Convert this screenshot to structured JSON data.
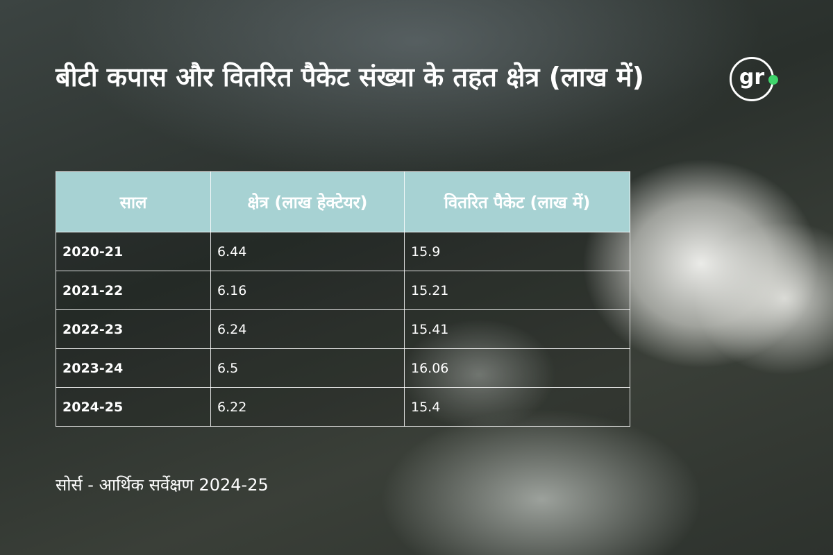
{
  "header": {
    "title": "बीटी कपास और वितरित पैकेट संख्या के तहत क्षेत्र (लाख में)",
    "logo": "gr"
  },
  "table": {
    "columns": [
      "साल",
      "क्षेत्र (लाख हेक्टेयर)",
      "वितरित पैकेट (लाख में)"
    ],
    "rows": [
      [
        "2020-21",
        6.44,
        15.9
      ],
      [
        "2021-22",
        6.16,
        15.21
      ],
      [
        "2022-23",
        6.24,
        15.41
      ],
      [
        "2023-24",
        6.5,
        16.06
      ],
      [
        "2024-25",
        6.22,
        15.4
      ]
    ]
  },
  "source": "सोर्स - आर्थिक सर्वेक्षण 2024-25"
}
